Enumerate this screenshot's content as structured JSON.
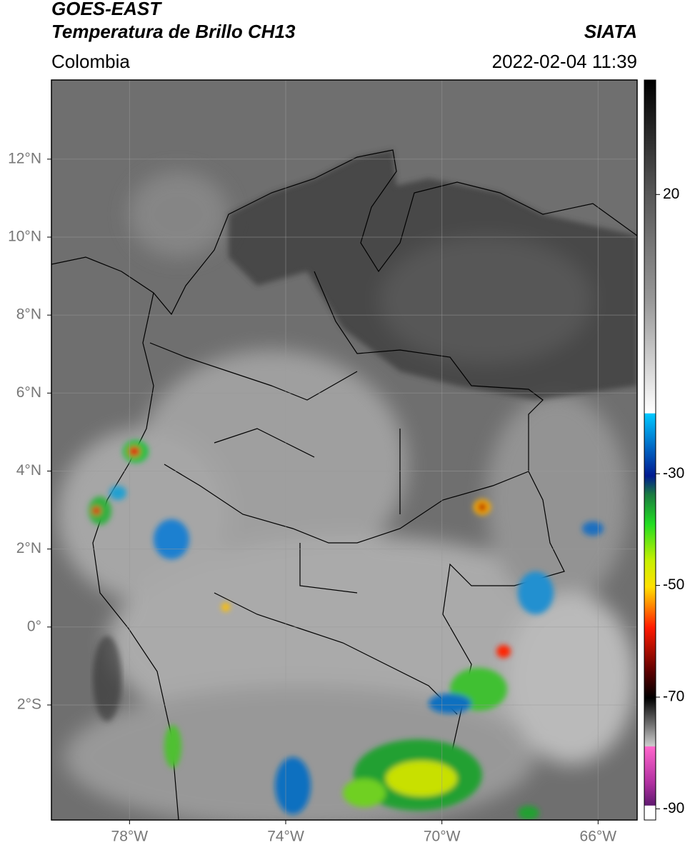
{
  "title": "GOES-EAST",
  "subtitle": "Temperatura de Brillo CH13",
  "region": "Colombia",
  "source": "SIATA",
  "timestamp": "2022-02-04 11:39",
  "map": {
    "xlim": [
      -80,
      -65
    ],
    "ylim": [
      -4.95,
      14.03
    ],
    "grid": true,
    "xticks": [
      {
        "value": -78,
        "label": "78°W"
      },
      {
        "value": -74,
        "label": "74°W"
      },
      {
        "value": -70,
        "label": "70°W"
      },
      {
        "value": -66,
        "label": "66°W"
      }
    ],
    "yticks": [
      {
        "value": 12,
        "label": "12°N"
      },
      {
        "value": 10,
        "label": "10°N"
      },
      {
        "value": 8,
        "label": "8°N"
      },
      {
        "value": 6,
        "label": "6°N"
      },
      {
        "value": 4,
        "label": "4°N"
      },
      {
        "value": 2,
        "label": "2°N"
      },
      {
        "value": 0,
        "label": "0°"
      },
      {
        "value": -2,
        "label": "2°S"
      }
    ]
  },
  "colorbar": {
    "lim": [
      -92,
      40.5
    ],
    "ticks": [
      20,
      -30,
      -50,
      -70,
      -90
    ]
  }
}
